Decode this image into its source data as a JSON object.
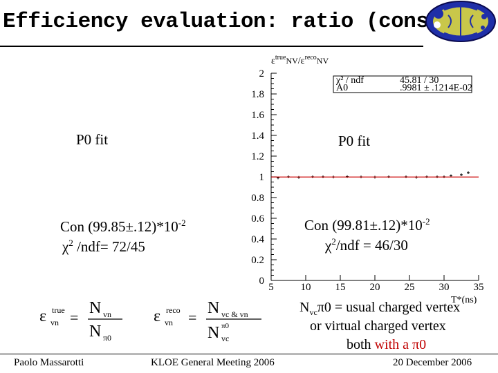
{
  "title": "Efficiency evaluation: ratio (const)",
  "left_panel": {
    "fit_label": "P0 fit",
    "con_text": "Con (99.85±.12)*10",
    "con_exp": "-2",
    "chi_text": "χ",
    "chi_exp": "2",
    "chi_rest": " /ndf= 72/45"
  },
  "right_panel": {
    "fit_label": "P0 fit",
    "con_text": "Con (99.81±.12)*10",
    "con_exp": "-2",
    "chi_text": "χ",
    "chi_exp": "2",
    "chi_rest": "/ndf = 46/30"
  },
  "plot": {
    "ylabel": "εtrueNV/εrecoNV",
    "xlabel": "T*(ns)",
    "stats": {
      "row1_label": "χ² / ndf",
      "row1_value": "45.81 / 30",
      "row2_label": "A0",
      "row2_value": ".9981 ± .1214E-02"
    },
    "line_color": "#cc0000"
  },
  "chart_data": {
    "type": "scatter",
    "xlabel": "T*(ns)",
    "ylabel": "εtrueNV/εrecoNV",
    "xlim": [
      5,
      35
    ],
    "ylim": [
      0,
      2
    ],
    "xticks": [
      "5",
      "10",
      "15",
      "20",
      "25",
      "30",
      "35"
    ],
    "yticks": [
      "0",
      "0.2",
      "0.4",
      "0.6",
      "0.8",
      "1",
      "1.2",
      "1.4",
      "1.6",
      "1.8",
      "2"
    ],
    "fit_constant": 0.9981,
    "x": [
      6,
      7.5,
      9,
      11,
      12.5,
      14,
      16,
      18,
      20,
      22,
      24.5,
      26,
      27.5,
      29,
      30,
      31,
      32.5,
      33.5
    ],
    "y": [
      0.99,
      1.0,
      0.995,
      1.0,
      1.0,
      0.998,
      1.002,
      0.999,
      0.997,
      1.0,
      1.0,
      0.996,
      1.0,
      1.0,
      1.0,
      1.01,
      1.02,
      1.04
    ]
  },
  "formulas": {
    "f1_eps": "ε",
    "f1_sup": "true",
    "f1_sub": "vn",
    "f1_num": "N",
    "f1_num_sub": "vn",
    "f1_den": "N",
    "f1_den_sub": "π0",
    "f2_eps": "ε",
    "f2_sup": "reco",
    "f2_sub": "vn",
    "f2_num": "N",
    "f2_num_sub": "vc & vn",
    "f2_den": "N",
    "f2_den_sup": "π0",
    "f2_den_sub": "vc"
  },
  "definition": {
    "n": "N",
    "n_sub": "vc",
    "pi": "π0",
    "rest1": " = usual charged vertex",
    "line2": "or virtual charged vertex",
    "line3_prefix": "both ",
    "line3_red": "with a π0"
  },
  "footer": {
    "author": "Paolo Massarotti",
    "meeting": "KLOE General Meeting 2006",
    "date": "20 December 2006"
  }
}
